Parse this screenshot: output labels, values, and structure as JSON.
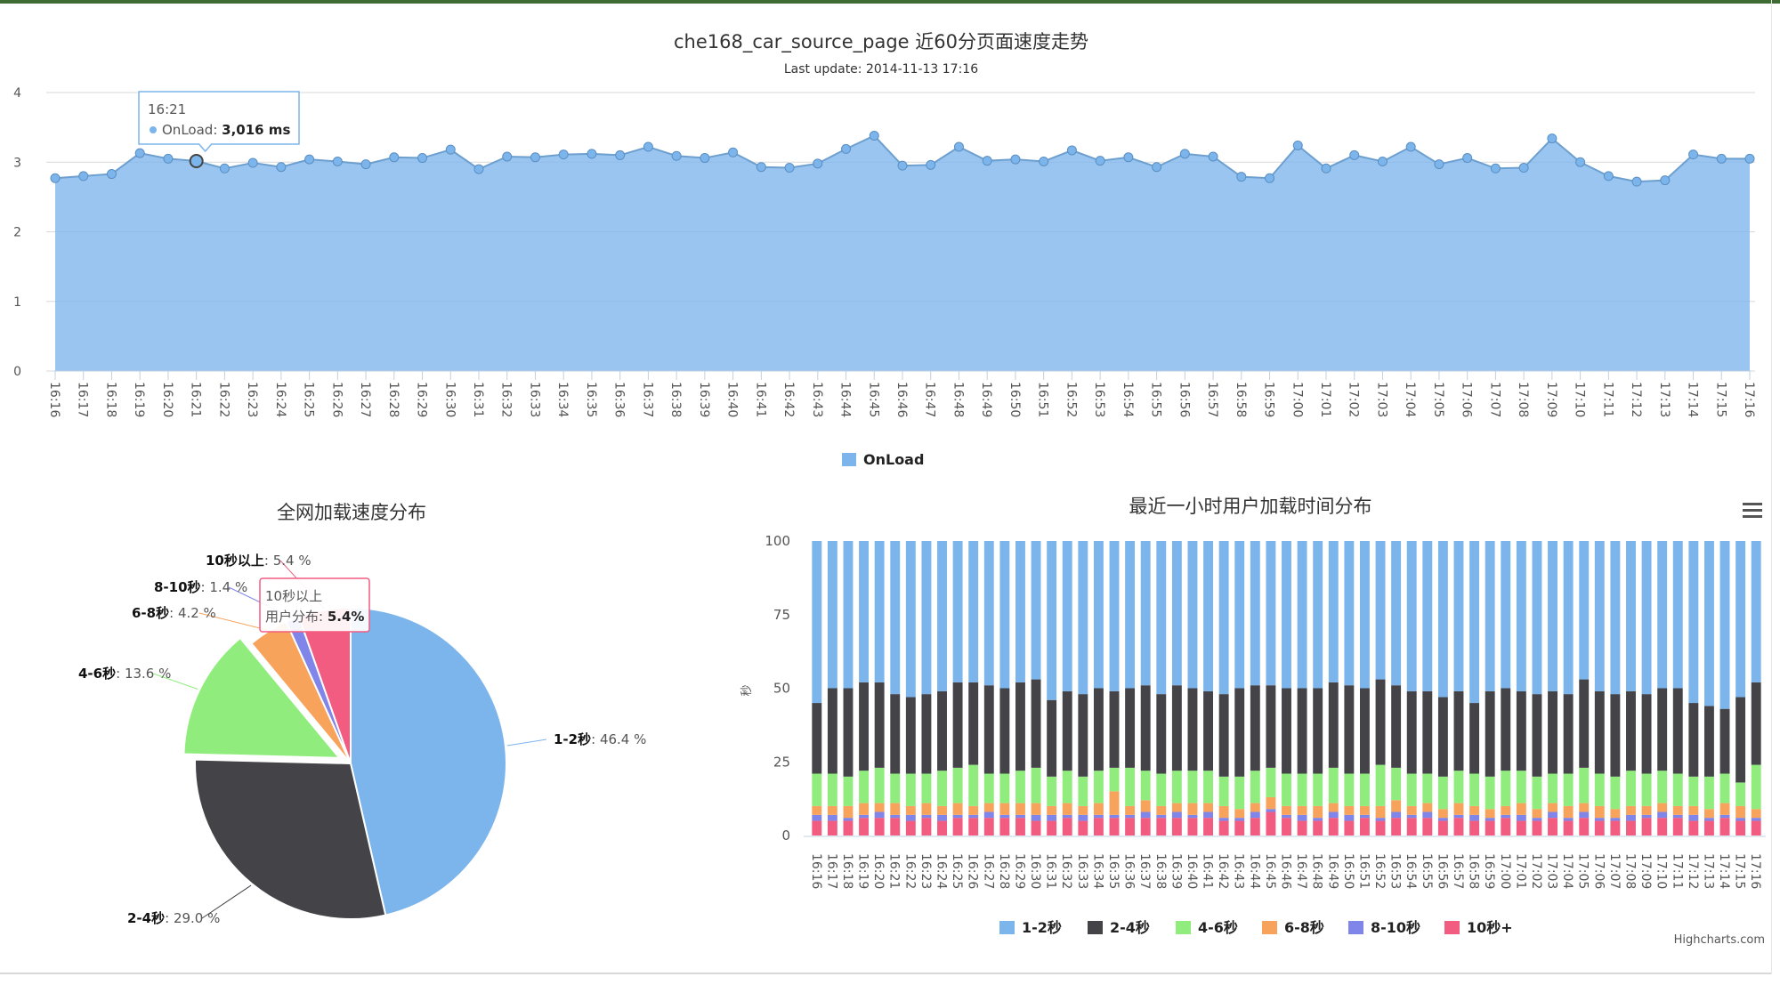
{
  "page": {
    "footer_credit": "Highcharts.com",
    "menu_icon": "hamburger-icon"
  },
  "chart_data": [
    {
      "type": "area",
      "title": "che168_car_source_page 近60分页面速度走势",
      "subtitle": "Last update: 2014-11-13 17:16",
      "ylabel": "",
      "ylim": [
        0,
        4
      ],
      "yticks": [
        "0",
        "1",
        "2",
        "3",
        "4"
      ],
      "grid": true,
      "legend": "bottom-center",
      "x": [
        "16:16",
        "16:17",
        "16:18",
        "16:19",
        "16:20",
        "16:21",
        "16:22",
        "16:23",
        "16:24",
        "16:25",
        "16:26",
        "16:27",
        "16:28",
        "16:29",
        "16:30",
        "16:31",
        "16:32",
        "16:33",
        "16:34",
        "16:35",
        "16:36",
        "16:37",
        "16:38",
        "16:39",
        "16:40",
        "16:41",
        "16:42",
        "16:43",
        "16:44",
        "16:45",
        "16:46",
        "16:47",
        "16:48",
        "16:49",
        "16:50",
        "16:51",
        "16:52",
        "16:53",
        "16:54",
        "16:55",
        "16:56",
        "16:57",
        "16:58",
        "16:59",
        "17:00",
        "17:01",
        "17:02",
        "17:03",
        "17:04",
        "17:05",
        "17:06",
        "17:07",
        "17:08",
        "17:09",
        "17:10",
        "17:11",
        "17:12",
        "17:13",
        "17:14",
        "17:15",
        "17:16"
      ],
      "series": [
        {
          "name": "OnLoad",
          "color": "#7cb5ec",
          "values": [
            2.77,
            2.8,
            2.83,
            3.13,
            3.05,
            3.016,
            2.91,
            2.99,
            2.93,
            3.04,
            3.01,
            2.97,
            3.07,
            3.06,
            3.18,
            2.9,
            3.08,
            3.07,
            3.11,
            3.12,
            3.1,
            3.22,
            3.09,
            3.06,
            3.14,
            2.93,
            2.92,
            2.98,
            3.19,
            3.38,
            2.95,
            2.96,
            3.22,
            3.02,
            3.04,
            3.01,
            3.17,
            3.02,
            3.07,
            2.93,
            3.12,
            3.08,
            2.79,
            2.77,
            3.24,
            2.91,
            3.1,
            3.01,
            3.22,
            2.97,
            3.06,
            2.91,
            2.92,
            3.34,
            3.0,
            2.8,
            2.72,
            2.74,
            3.11,
            3.05,
            3.05
          ]
        }
      ],
      "tooltip": {
        "time": "16:21",
        "series": "OnLoad",
        "value_text": "3,016 ms",
        "index": 5
      }
    },
    {
      "type": "pie",
      "title": "全网加载速度分布",
      "series": [
        {
          "name": "1-2秒",
          "value": 46.4,
          "label": "46.4 %",
          "color": "#7cb5ec"
        },
        {
          "name": "2-4秒",
          "value": 29.0,
          "label": "29.0 %",
          "color": "#434348"
        },
        {
          "name": "4-6秒",
          "value": 13.6,
          "label": "13.6 %",
          "color": "#90ed7d"
        },
        {
          "name": "6-8秒",
          "value": 4.2,
          "label": "4.2 %",
          "color": "#f7a35c"
        },
        {
          "name": "8-10秒",
          "value": 1.4,
          "label": "1.4 %",
          "color": "#8085e9"
        },
        {
          "name": "10秒以上",
          "value": 5.4,
          "label": "5.4 %",
          "color": "#f15c80"
        }
      ],
      "tooltip": {
        "line1": "10秒以上",
        "line2_label": "用户分布",
        "line2_value": "5.4%"
      }
    },
    {
      "type": "bar",
      "stacked": "percent",
      "title": "最近一小时用户加载时间分布",
      "ylabel": "秒",
      "ylim": [
        0,
        100
      ],
      "yticks": [
        "0",
        "25",
        "50",
        "75",
        "100"
      ],
      "legend": "bottom-center",
      "categories": [
        "16:16",
        "16:17",
        "16:18",
        "16:19",
        "16:20",
        "16:21",
        "16:22",
        "16:23",
        "16:24",
        "16:25",
        "16:26",
        "16:27",
        "16:28",
        "16:29",
        "16:30",
        "16:31",
        "16:32",
        "16:33",
        "16:34",
        "16:35",
        "16:36",
        "16:37",
        "16:38",
        "16:39",
        "16:40",
        "16:41",
        "16:42",
        "16:43",
        "16:44",
        "16:45",
        "16:46",
        "16:47",
        "16:48",
        "16:49",
        "16:50",
        "16:51",
        "16:52",
        "16:53",
        "16:54",
        "16:55",
        "16:56",
        "16:57",
        "16:58",
        "16:59",
        "17:00",
        "17:01",
        "17:02",
        "17:03",
        "17:04",
        "17:05",
        "17:06",
        "17:07",
        "17:08",
        "17:09",
        "17:10",
        "17:11",
        "17:12",
        "17:13",
        "17:14",
        "17:15",
        "17:16"
      ],
      "series": [
        {
          "name": "10秒+",
          "color": "#f15c80",
          "values": [
            5,
            5,
            5,
            6,
            6,
            6,
            5,
            6,
            5,
            6,
            6,
            6,
            6,
            6,
            5,
            5,
            6,
            5,
            6,
            6,
            6,
            6,
            6,
            6,
            6,
            6,
            5,
            5,
            6,
            8,
            6,
            5,
            5,
            6,
            5,
            6,
            5,
            6,
            6,
            6,
            5,
            6,
            5,
            5,
            6,
            5,
            5,
            6,
            5,
            6,
            5,
            5,
            5,
            6,
            6,
            6,
            5,
            5,
            6,
            5,
            5
          ]
        },
        {
          "name": "8-10秒",
          "color": "#8085e9",
          "values": [
            2,
            2,
            1,
            1,
            2,
            1,
            2,
            1,
            2,
            1,
            1,
            2,
            1,
            1,
            2,
            2,
            1,
            2,
            1,
            1,
            1,
            2,
            1,
            2,
            1,
            2,
            1,
            1,
            2,
            1,
            1,
            2,
            1,
            2,
            2,
            1,
            1,
            2,
            1,
            2,
            1,
            1,
            2,
            1,
            1,
            2,
            1,
            2,
            1,
            2,
            1,
            1,
            2,
            1,
            2,
            1,
            2,
            1,
            1,
            1,
            1
          ]
        },
        {
          "name": "6-8秒",
          "color": "#f7a35c",
          "values": [
            3,
            3,
            4,
            4,
            3,
            4,
            3,
            4,
            3,
            4,
            3,
            3,
            4,
            4,
            4,
            3,
            4,
            3,
            4,
            8,
            3,
            4,
            3,
            3,
            4,
            3,
            4,
            3,
            3,
            4,
            3,
            3,
            4,
            3,
            3,
            3,
            4,
            4,
            3,
            3,
            3,
            4,
            3,
            3,
            3,
            4,
            3,
            3,
            4,
            3,
            4,
            3,
            3,
            3,
            3,
            3,
            3,
            3,
            4,
            4,
            3
          ]
        },
        {
          "name": "4-6秒",
          "color": "#90ed7d",
          "values": [
            11,
            11,
            10,
            11,
            12,
            10,
            11,
            10,
            12,
            12,
            14,
            10,
            10,
            11,
            12,
            10,
            11,
            10,
            11,
            8,
            13,
            10,
            11,
            11,
            11,
            11,
            10,
            11,
            11,
            10,
            11,
            11,
            11,
            12,
            11,
            11,
            14,
            11,
            11,
            10,
            11,
            11,
            11,
            11,
            12,
            11,
            11,
            10,
            11,
            12,
            11,
            11,
            12,
            11,
            11,
            11,
            10,
            11,
            10,
            8,
            15
          ]
        },
        {
          "name": "2-4秒",
          "color": "#434348",
          "values": [
            24,
            29,
            30,
            30,
            29,
            27,
            26,
            27,
            27,
            29,
            28,
            30,
            29,
            30,
            30,
            26,
            27,
            28,
            28,
            26,
            27,
            29,
            27,
            29,
            28,
            27,
            28,
            30,
            29,
            28,
            29,
            29,
            29,
            29,
            30,
            29,
            29,
            28,
            28,
            28,
            27,
            27,
            24,
            29,
            28,
            27,
            28,
            28,
            27,
            30,
            28,
            28,
            27,
            27,
            28,
            29,
            25,
            24,
            22,
            29,
            28
          ]
        },
        {
          "name": "1-2秒",
          "color": "#7cb5ec",
          "values": [
            55,
            50,
            50,
            48,
            48,
            52,
            53,
            52,
            51,
            48,
            48,
            49,
            50,
            48,
            47,
            54,
            51,
            52,
            50,
            51,
            50,
            49,
            52,
            49,
            50,
            51,
            52,
            50,
            49,
            49,
            50,
            50,
            50,
            48,
            49,
            50,
            47,
            49,
            51,
            51,
            53,
            51,
            55,
            51,
            50,
            51,
            52,
            51,
            52,
            47,
            51,
            52,
            51,
            52,
            50,
            50,
            55,
            56,
            57,
            53,
            48
          ]
        }
      ]
    }
  ]
}
